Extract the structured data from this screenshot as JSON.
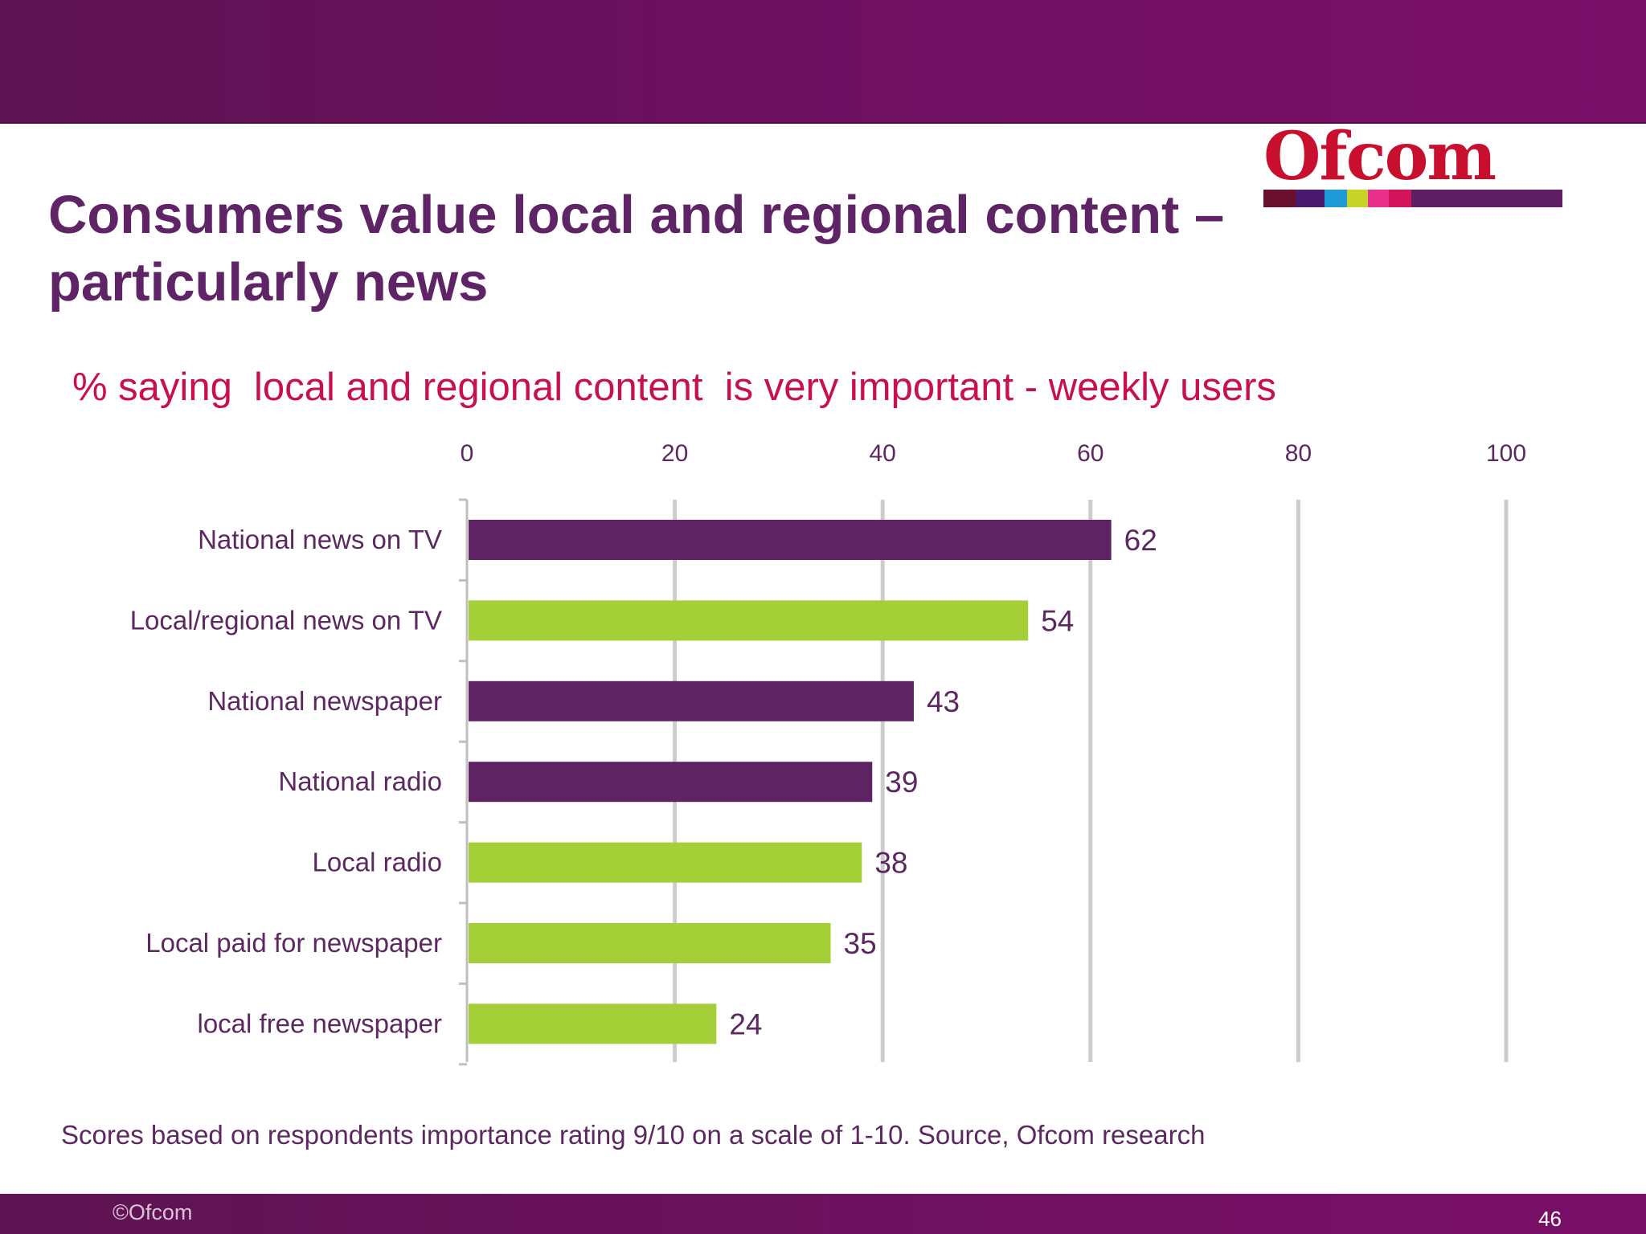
{
  "slide": {
    "title": "Consumers value local and regional content – particularly news",
    "subtitle": "% saying  local and regional content  is very important - weekly users",
    "footnote": "Scores based on respondents importance rating 9/10 on a scale of 1-10.  Source, Ofcom research",
    "copyright": "©Ofcom",
    "page_number": "46"
  },
  "logo": {
    "text": "Ofcom",
    "stripe_colors": [
      "#6a0f2e",
      "#4a1a6e",
      "#1e9bd7",
      "#c6d42a",
      "#e8308a",
      "#d3145a",
      "#5e1e64"
    ]
  },
  "colors": {
    "national": "#5e2363",
    "local": "#a5cf37",
    "axis_text": "#5b2860",
    "grid": "#cccccc"
  },
  "chart_data": {
    "type": "bar",
    "orientation": "horizontal",
    "title": "",
    "xlabel": "",
    "ylabel": "",
    "xlim": [
      0,
      100
    ],
    "xticks": [
      "0",
      "20",
      "40",
      "60",
      "80",
      "100"
    ],
    "grid": true,
    "legend": "none",
    "categories": [
      "National news on TV",
      "Local/regional news on TV",
      "National newspaper",
      "National radio",
      "Local radio",
      "Local paid for newspaper",
      "local free newspaper"
    ],
    "values": [
      62,
      54,
      43,
      39,
      38,
      35,
      24
    ],
    "bar_colors": [
      "#5e2363",
      "#a5cf37",
      "#5e2363",
      "#5e2363",
      "#a5cf37",
      "#a5cf37",
      "#a5cf37"
    ],
    "data_labels": [
      "62",
      "54",
      "43",
      "39",
      "38",
      "35",
      "24"
    ]
  }
}
